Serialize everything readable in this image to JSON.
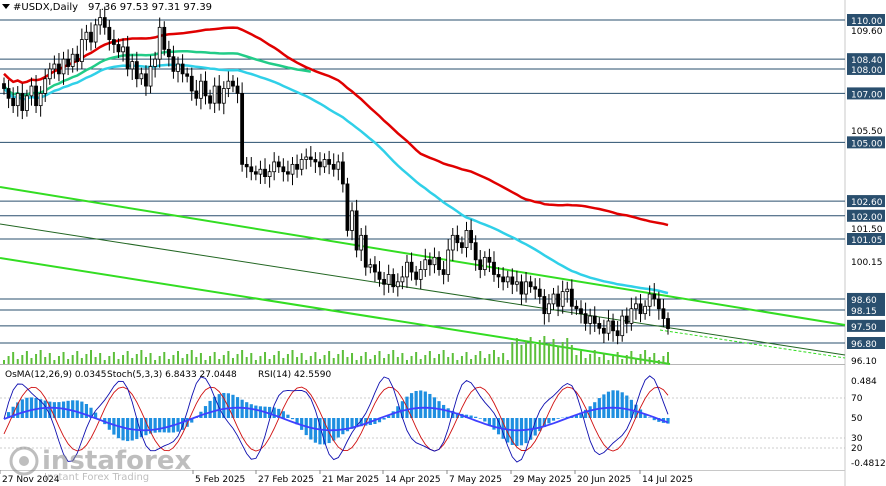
{
  "header": {
    "title": "#USDX,Daily",
    "ohlc": "97.36 97.53 97.31 97.39"
  },
  "indicators_label": {
    "osma": "OsMA(12,26,9) 0.0345",
    "stoch": "Stoch(5,3,3) 6.8433 27.0448",
    "rsi": "RSI(14) 42.5590"
  },
  "colors": {
    "candles": "#000000",
    "ma_red": "#e00000",
    "ma_green": "#22cc88",
    "ma_cyan": "#30d0e8",
    "channel": "#33dd22",
    "level_line": "#2a4f6e",
    "osma_hist": "#1e8fe0",
    "stoch_main": "#1010b0",
    "stoch_signal": "#d01010",
    "rsi": "#4040ff",
    "badge_bg": "#2a4f6e",
    "badge_text": "#ffffff"
  },
  "watermark": {
    "brand": "instaforex",
    "tagline": "Instant Forex Trading"
  },
  "chart_data": {
    "type": "candlestick",
    "symbol": "#USDX",
    "timeframe": "Daily",
    "last_ohlc": {
      "open": 97.36,
      "high": 97.53,
      "low": 97.31,
      "close": 97.39
    },
    "y_range": [
      95.85,
      110.55
    ],
    "price_ticks": [
      "110.00",
      "109.60",
      "108.40",
      "108.00",
      "107.00",
      "105.50",
      "105.00",
      "102.60",
      "102.00",
      "101.50",
      "101.05",
      "100.15",
      "98.60",
      "98.15",
      "97.50",
      "96.80",
      "96.10"
    ],
    "level_labels": [
      "110.00",
      "108.40",
      "108.00",
      "107.00",
      "105.00",
      "102.60",
      "102.00",
      "101.05",
      "98.60",
      "98.15",
      "97.50",
      "96.80"
    ],
    "x_labels": [
      "27 Nov 2024",
      "5 Feb 2025",
      "27 Feb 2025",
      "21 Mar 2025",
      "14 Apr 2025",
      "7 May 2025",
      "29 May 2025",
      "20 Jun 2025",
      "14 Jul 2025"
    ],
    "closes": [
      107.2,
      106.8,
      106.5,
      107.0,
      106.3,
      106.9,
      107.3,
      106.5,
      107.0,
      107.6,
      108.0,
      108.2,
      107.8,
      108.4,
      108.1,
      108.6,
      108.3,
      109.2,
      109.5,
      109.1,
      109.8,
      110.1,
      109.7,
      109.2,
      109.0,
      108.7,
      108.9,
      108.0,
      108.3,
      107.6,
      107.8,
      107.3,
      108.1,
      108.4,
      109.7,
      108.8,
      108.5,
      107.9,
      108.2,
      107.8,
      107.7,
      107.1,
      106.8,
      107.5,
      106.9,
      106.6,
      107.3,
      106.6,
      107.2,
      107.5,
      107.3,
      107.0,
      104.1,
      104.0,
      103.8,
      103.7,
      103.9,
      103.6,
      103.8,
      104.2,
      104.0,
      103.8,
      103.7,
      104.1,
      103.9,
      104.3,
      104.4,
      104.3,
      104.2,
      104.0,
      104.3,
      104.1,
      103.9,
      104.2,
      103.3,
      101.4,
      102.2,
      100.6,
      101.2,
      99.9,
      100.0,
      99.7,
      99.4,
      99.2,
      99.6,
      99.1,
      99.3,
      99.5,
      100.1,
      99.7,
      99.4,
      99.8,
      100.2,
      100.0,
      100.3,
      99.8,
      99.6,
      100.6,
      101.2,
      100.9,
      100.7,
      101.4,
      100.9,
      100.2,
      99.8,
      100.3,
      100.1,
      99.6,
      99.5,
      99.3,
      99.5,
      99.2,
      99.3,
      98.8,
      99.3,
      99.1,
      99.0,
      98.7,
      98.0,
      98.4,
      98.8,
      98.3,
      98.9,
      99.0,
      98.3,
      98.2,
      98.0,
      97.6,
      97.9,
      97.6,
      97.4,
      97.2,
      97.7,
      97.3,
      97.1,
      97.9,
      97.6,
      98.2,
      98.4,
      98.0,
      98.3,
      98.8,
      98.6,
      98.2,
      97.8,
      97.39
    ]
  }
}
